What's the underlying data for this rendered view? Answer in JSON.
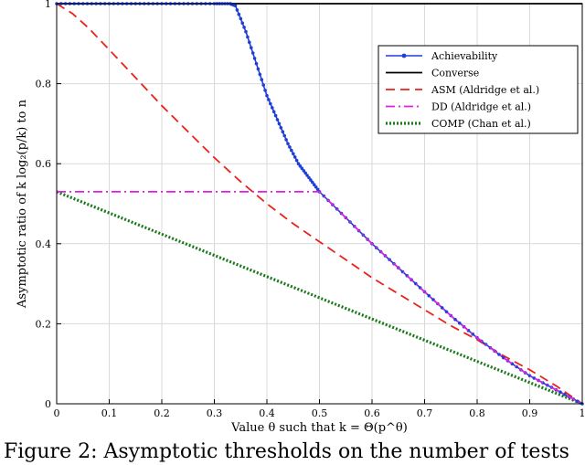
{
  "chart_data": {
    "type": "line",
    "xlabel": "Value θ such that k = Θ(p^θ)",
    "ylabel": "Asymptotic ratio of k log₂(p/k) to n",
    "xlim": [
      0,
      1
    ],
    "ylim": [
      0,
      1
    ],
    "xticks": [
      "0",
      "0.1",
      "0.2",
      "0.3",
      "0.4",
      "0.5",
      "0.6",
      "0.7",
      "0.8",
      "0.9",
      "1"
    ],
    "yticks": [
      "0",
      "0.2",
      "0.4",
      "0.6",
      "0.8",
      "1"
    ],
    "grid": true,
    "legend_position": "top-right",
    "series": [
      {
        "name": "Achievability",
        "color": "#1f3fd9",
        "style": "solid-markers",
        "x": [
          0,
          0.05,
          0.1,
          0.15,
          0.2,
          0.25,
          0.3,
          0.33,
          0.34,
          0.36,
          0.38,
          0.4,
          0.42,
          0.44,
          0.46,
          0.48,
          0.5,
          0.55,
          0.6,
          0.65,
          0.7,
          0.75,
          0.8,
          0.85,
          0.9,
          0.95,
          1.0
        ],
        "y": [
          1,
          1,
          1,
          1,
          1,
          1,
          1,
          1,
          0.995,
          0.93,
          0.85,
          0.77,
          0.71,
          0.65,
          0.6,
          0.565,
          0.53,
          0.465,
          0.4,
          0.34,
          0.28,
          0.22,
          0.165,
          0.115,
          0.07,
          0.035,
          0
        ]
      },
      {
        "name": "Converse",
        "color": "#000000",
        "style": "solid",
        "x": [
          0,
          1
        ],
        "y": [
          1,
          1
        ]
      },
      {
        "name": "ASM (Aldridge et al.)",
        "color": "#e8241d",
        "style": "dashed",
        "x": [
          0,
          0.03,
          0.06,
          0.1,
          0.15,
          0.2,
          0.25,
          0.3,
          0.35,
          0.4,
          0.45,
          0.5,
          0.55,
          0.6,
          0.65,
          0.7,
          0.75,
          0.8,
          0.85,
          0.9,
          0.95,
          1.0
        ],
        "y": [
          1,
          0.975,
          0.94,
          0.885,
          0.815,
          0.745,
          0.68,
          0.615,
          0.555,
          0.5,
          0.45,
          0.405,
          0.36,
          0.315,
          0.275,
          0.235,
          0.195,
          0.16,
          0.12,
          0.085,
          0.045,
          0
        ]
      },
      {
        "name": "DD (Aldridge et al.)",
        "color": "#e020e0",
        "style": "dash-dot",
        "x": [
          0,
          0.5,
          0.55,
          0.6,
          0.65,
          0.7,
          0.75,
          0.8,
          0.85,
          0.9,
          0.95,
          1.0
        ],
        "y": [
          0.53,
          0.53,
          0.465,
          0.4,
          0.34,
          0.28,
          0.22,
          0.165,
          0.115,
          0.07,
          0.035,
          0
        ]
      },
      {
        "name": "COMP (Chan et al.)",
        "color": "#1a7a1a",
        "style": "dotted",
        "x": [
          0,
          1
        ],
        "y": [
          0.53,
          0
        ]
      }
    ],
    "caption_fragment": "Figure 2: Asymptotic thresholds on the number of tests"
  }
}
